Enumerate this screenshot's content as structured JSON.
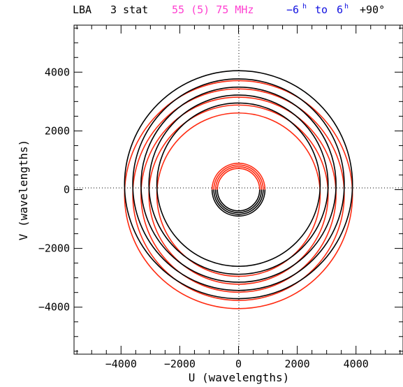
{
  "header": {
    "config": "LBA",
    "stations": "3 stat",
    "freq": "55 (5) 75 MHz",
    "hour_angle": {
      "start": "−6",
      "start_unit": "h",
      "to": "to",
      "end": "6",
      "end_unit": "h"
    },
    "declination": "+90°",
    "colors": {
      "config": "#000000",
      "stations": "#000000",
      "freq": "#ff3fd0",
      "hour_angle": "#1010e0",
      "declination": "#000000"
    }
  },
  "chart_data": {
    "type": "scatter",
    "xlabel": "U (wavelengths)",
    "ylabel": "V (wavelengths)",
    "xlim": [
      -5600,
      5600
    ],
    "ylim": [
      -5600,
      5600
    ],
    "xticks": [
      -4000,
      -2000,
      0,
      2000,
      4000
    ],
    "yticks": [
      -4000,
      -2000,
      0,
      2000,
      4000
    ],
    "xtick_labels": [
      "−4000",
      "−2000",
      "0",
      "2000",
      "4000"
    ],
    "ytick_labels": [
      "−4000",
      "−2000",
      "0",
      "2000",
      "4000"
    ],
    "zero_lines": true,
    "colors": {
      "upper": "#ff2a10",
      "lower": "#000000"
    },
    "series": [
      {
        "center": [
          0,
          0
        ],
        "radii": [
          720,
          780,
          840,
          900
        ],
        "upper_color": "#ff2a10",
        "lower_color": "#000000",
        "split_angle_deg": 0
      },
      {
        "center": [
          0,
          -170
        ],
        "radii": [
          2780,
          3050,
          3320,
          3600,
          3880
        ],
        "upper_color": "#ff2a10",
        "lower_color": "#ff2a10",
        "split_angle_deg": 0
      },
      {
        "center": [
          0,
          170
        ],
        "radii": [
          2780,
          3050,
          3320,
          3600,
          3880
        ],
        "upper_color": "#000000",
        "lower_color": "#000000",
        "split_angle_deg": 0
      }
    ]
  }
}
